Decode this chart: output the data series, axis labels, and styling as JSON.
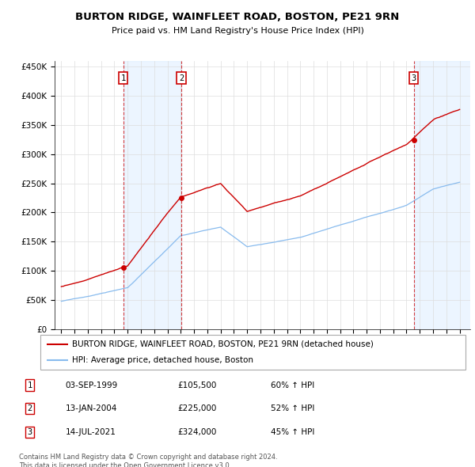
{
  "title": "BURTON RIDGE, WAINFLEET ROAD, BOSTON, PE21 9RN",
  "subtitle": "Price paid vs. HM Land Registry's House Price Index (HPI)",
  "legend_line1": "BURTON RIDGE, WAINFLEET ROAD, BOSTON, PE21 9RN (detached house)",
  "legend_line2": "HPI: Average price, detached house, Boston",
  "footer1": "Contains HM Land Registry data © Crown copyright and database right 2024.",
  "footer2": "This data is licensed under the Open Government Licence v3.0.",
  "transactions": [
    {
      "num": 1,
      "date": "03-SEP-1999",
      "price": "£105,500",
      "hpi": "60% ↑ HPI",
      "year": 1999.67,
      "price_val": 105500
    },
    {
      "num": 2,
      "date": "13-JAN-2004",
      "price": "£225,000",
      "hpi": "52% ↑ HPI",
      "year": 2004.04,
      "price_val": 225000
    },
    {
      "num": 3,
      "date": "14-JUL-2021",
      "price": "£324,000",
      "hpi": "45% ↑ HPI",
      "year": 2021.54,
      "price_val": 324000
    }
  ],
  "red_color": "#cc0000",
  "blue_color": "#88bbee",
  "shade_color": "#ddeeff",
  "grid_color": "#dddddd",
  "ylim": [
    0,
    460000
  ],
  "yticks": [
    0,
    50000,
    100000,
    150000,
    200000,
    250000,
    300000,
    350000,
    400000,
    450000
  ],
  "xlim_start": 1994.5,
  "xlim_end": 2025.8
}
